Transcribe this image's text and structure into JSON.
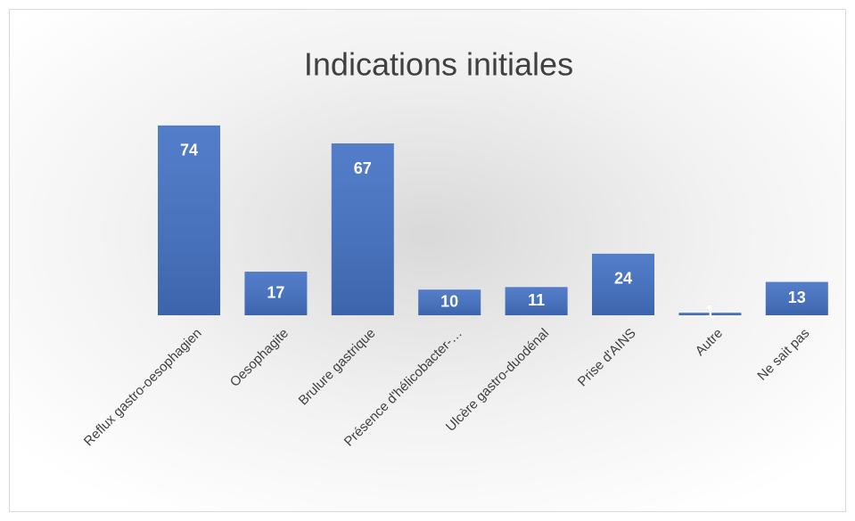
{
  "chart_data": {
    "type": "bar",
    "title": "Indications initiales",
    "categories": [
      "Reflux gastro-oesophagien",
      "Oesophagite",
      "Brulure gastrique",
      "Présence d'hélicobacter-…",
      "Ulcère gastro-duodénal",
      "Prise d'AINS",
      "Autre",
      "Ne sait pas"
    ],
    "values": [
      74,
      17,
      67,
      10,
      11,
      24,
      1,
      13
    ],
    "color": "#4472c4"
  }
}
